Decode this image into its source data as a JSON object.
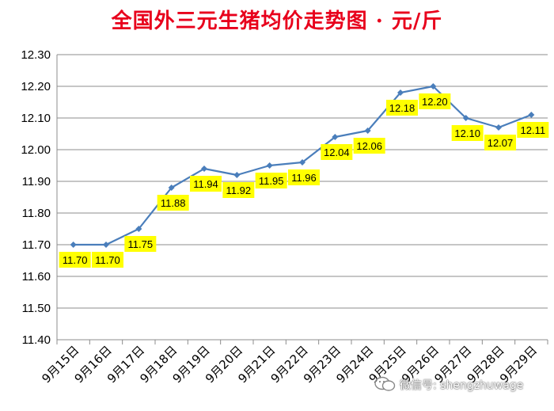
{
  "chart_data": {
    "type": "line",
    "title": "全国外三元生猪均价走势图 · 元/斤",
    "categories": [
      "9月15日",
      "9月16日",
      "9月17日",
      "9月18日",
      "9月19日",
      "9月20日",
      "9月21日",
      "9月22日",
      "9月23日",
      "9月24日",
      "9月25日",
      "9月26日",
      "9月27日",
      "9月28日",
      "9月29日"
    ],
    "values": [
      11.7,
      11.7,
      11.75,
      11.88,
      11.94,
      11.92,
      11.95,
      11.96,
      12.04,
      12.06,
      12.18,
      12.2,
      12.1,
      12.07,
      12.11
    ],
    "data_labels": [
      "11.70",
      "11.70",
      "11.75",
      "11.88",
      "11.94",
      "11.92",
      "11.95",
      "11.96",
      "12.04",
      "12.06",
      "12.18",
      "12.20",
      "12.10",
      "12.07",
      "12.11"
    ],
    "y_ticks": [
      "11.40",
      "11.50",
      "11.60",
      "11.70",
      "11.80",
      "11.90",
      "12.00",
      "12.10",
      "12.20",
      "12.30"
    ],
    "ylim": [
      11.4,
      12.3
    ],
    "grid": true,
    "line_color": "#4a7ebb",
    "label_bg_color": "#ffff00",
    "title_color": "#e8001c"
  },
  "watermark": {
    "text": "微信号: shengzhuwage",
    "icon": "wechat-icon"
  }
}
